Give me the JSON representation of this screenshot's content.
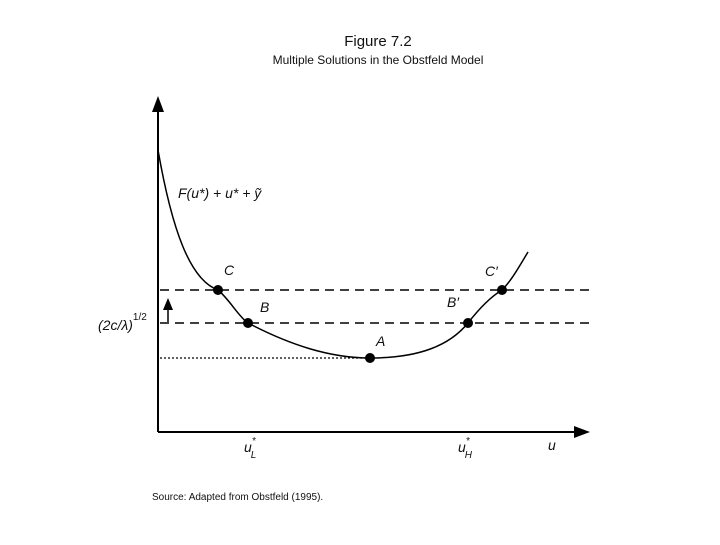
{
  "header": {
    "title": "Figure 7.2",
    "subtitle": "Multiple Solutions in the Obstfeld Model"
  },
  "curve_label": "F(u*) + u* + ỹ",
  "points": [
    {
      "label": "C"
    },
    {
      "label": "B"
    },
    {
      "label": "A"
    },
    {
      "label": "B′"
    },
    {
      "label": "C′"
    }
  ],
  "y_label": {
    "base": "(2c/λ)",
    "sup": "1/2"
  },
  "x_labels": [
    {
      "base": "u",
      "sup": "*",
      "sub": "L"
    },
    {
      "base": "u",
      "sup": "*",
      "sub": "H"
    }
  ],
  "x_axis_label": "u",
  "source": "Source: Adapted from Obstfeld (1995)."
}
